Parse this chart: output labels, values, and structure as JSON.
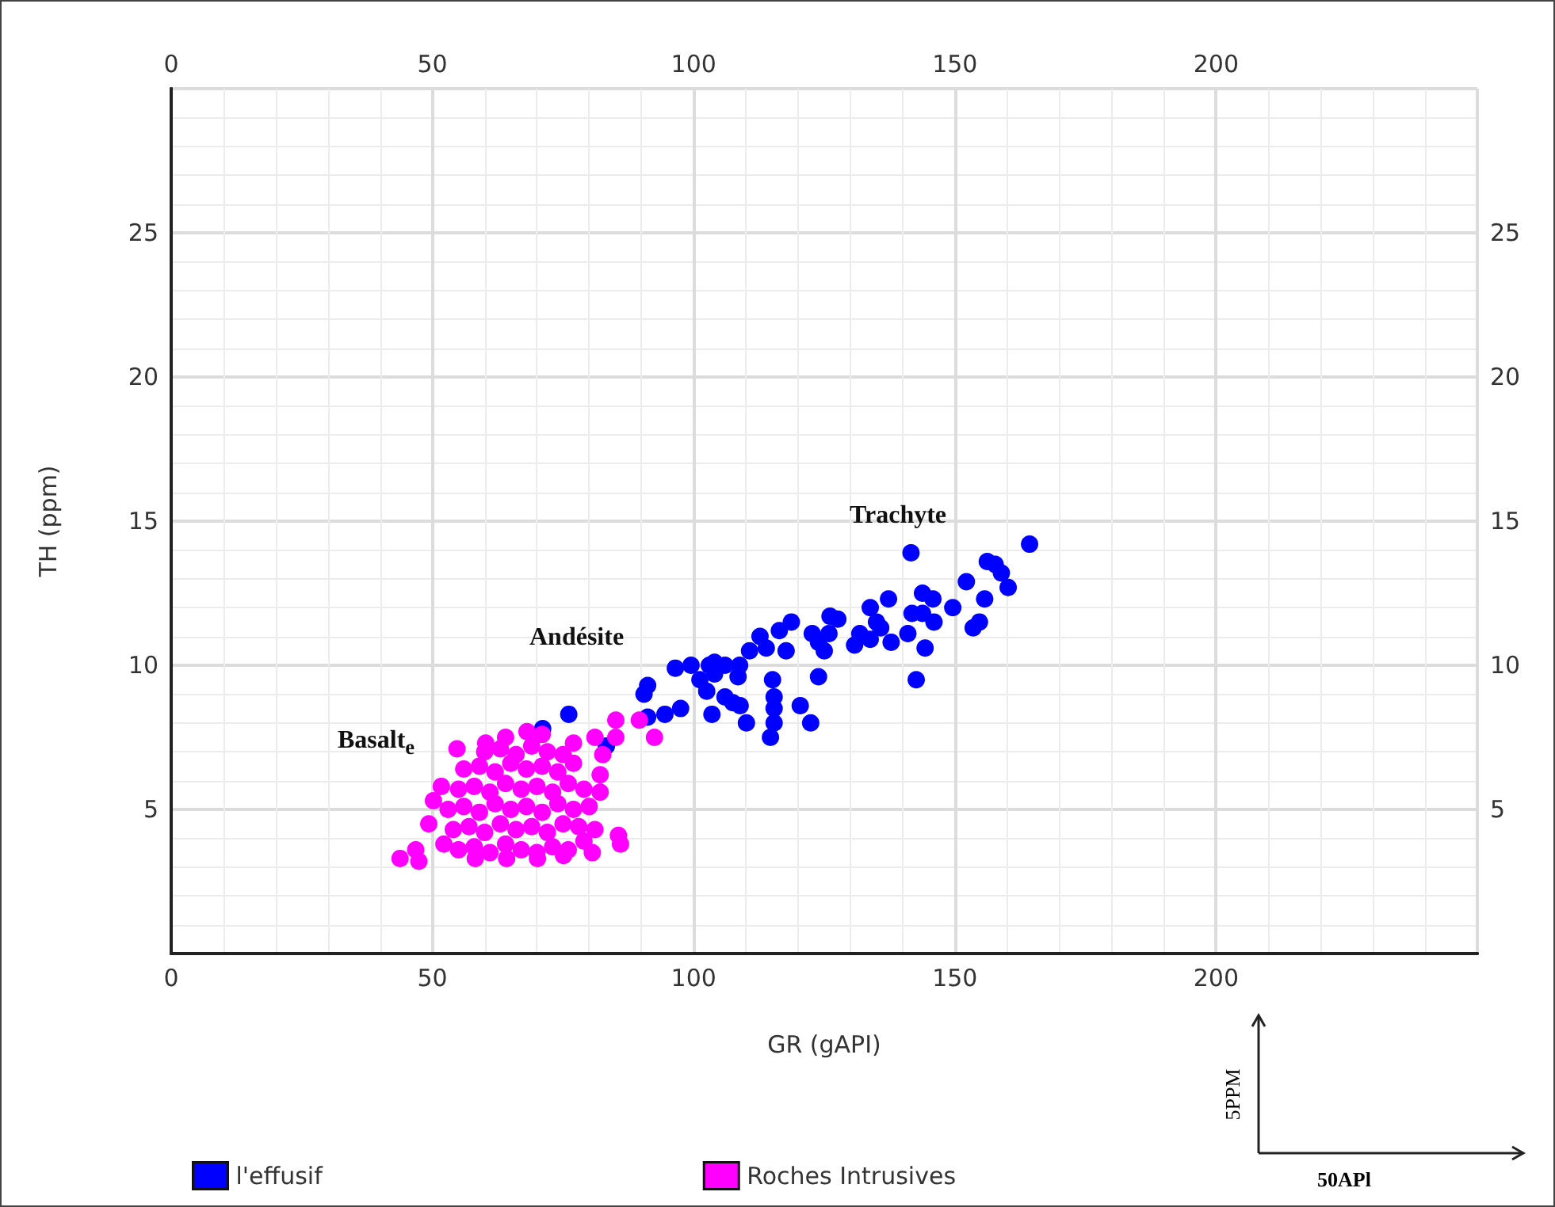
{
  "chart_data": {
    "type": "scatter",
    "xlabel": "GR (gAPI)",
    "ylabel": "TH (ppm)",
    "xlim": [
      0,
      250
    ],
    "xticks": [
      0,
      50,
      100,
      150,
      200
    ],
    "x2lim": [
      0,
      250
    ],
    "x2ticks": [
      0,
      50,
      100,
      150,
      200
    ],
    "ylim": [
      0,
      30
    ],
    "yticks": [
      5,
      10,
      15,
      20,
      25
    ],
    "y2lim": [
      0,
      30
    ],
    "y2ticks": [
      5,
      10,
      15,
      20,
      25
    ],
    "grid": true,
    "legend": "bottom left",
    "marker": "circle",
    "annotations": [
      "Trachyte",
      "Andésite",
      "Basalt$_{e}$",
      "5PPM",
      "50APl"
    ],
    "series": [
      {
        "name": "l'effusif",
        "color": "#0000ff",
        "x": [
          164.3,
          141.6,
          156.2,
          157.7,
          158.9,
          160.2,
          152.2,
          155.7,
          137.3,
          143.8,
          145.8,
          149.6,
          133.8,
          141.8,
          143.8,
          126.1,
          127.6,
          135.0,
          135.8,
          146.0,
          154.7,
          153.5,
          118.7,
          116.4,
          122.7,
          123.9,
          125.0,
          125.9,
          131.8,
          130.8,
          133.8,
          137.8,
          141.0,
          144.3,
          112.7,
          110.7,
          113.9,
          117.7,
          142.6,
          123.9,
          96.5,
          99.5,
          103.0,
          104.0,
          106.0,
          108.8,
          104.0,
          108.5,
          115.1,
          91.2,
          90.5,
          101.2,
          102.5,
          106.0,
          107.5,
          108.9,
          115.4,
          115.4,
          120.4,
          103.5,
          97.5,
          94.5,
          91.2,
          110.1,
          115.4,
          114.7,
          122.4,
          76.1,
          71.1,
          83.3
        ],
        "values": [
          14.2,
          13.9,
          13.6,
          13.5,
          13.2,
          12.7,
          12.9,
          12.3,
          12.3,
          12.5,
          12.3,
          12.0,
          12.0,
          11.8,
          11.8,
          11.7,
          11.6,
          11.5,
          11.3,
          11.5,
          11.5,
          11.3,
          11.5,
          11.2,
          11.1,
          10.8,
          10.5,
          11.1,
          11.1,
          10.7,
          10.9,
          10.8,
          11.1,
          10.6,
          11.0,
          10.5,
          10.6,
          10.5,
          9.5,
          9.6,
          9.9,
          10.0,
          10.0,
          10.1,
          10.0,
          10.0,
          9.7,
          9.6,
          9.5,
          9.3,
          9.0,
          9.5,
          9.1,
          8.9,
          8.7,
          8.6,
          8.9,
          8.5,
          8.6,
          8.3,
          8.5,
          8.3,
          8.2,
          8.0,
          8.0,
          7.5,
          8.0,
          8.3,
          7.8,
          7.2
        ]
      },
      {
        "name": "Roches Intrusives",
        "color": "#ff00ff",
        "x": [
          43.8,
          46.8,
          47.4,
          54.7,
          60.2,
          68.1,
          85.1,
          89.6,
          85.1,
          92.5,
          81.1,
          82.6,
          82.1,
          82.1,
          85.6,
          86.0,
          81.1,
          80.6,
          75.1,
          50.2,
          49.3,
          51.7,
          52.2,
          58.2,
          64.2,
          70.1,
          55,
          58,
          61,
          64,
          67,
          70,
          73,
          76,
          79,
          54,
          57,
          60,
          63,
          66,
          69,
          72,
          75,
          78,
          53,
          56,
          59,
          62,
          65,
          68,
          71,
          74,
          77,
          80,
          55,
          58,
          61,
          64,
          67,
          70,
          73,
          76,
          79,
          56,
          59,
          62,
          65,
          68,
          71,
          74,
          77,
          60,
          63,
          66,
          69,
          72,
          75,
          64,
          71,
          77
        ],
        "values": [
          3.3,
          3.6,
          3.2,
          7.1,
          7.3,
          7.7,
          8.1,
          8.1,
          7.5,
          7.5,
          7.5,
          6.9,
          6.2,
          5.6,
          4.1,
          3.8,
          4.3,
          3.5,
          3.4,
          5.3,
          4.5,
          5.8,
          3.8,
          3.3,
          3.3,
          3.3,
          3.6,
          3.7,
          3.5,
          3.8,
          3.6,
          3.5,
          3.7,
          3.6,
          3.9,
          4.3,
          4.4,
          4.2,
          4.5,
          4.3,
          4.4,
          4.2,
          4.5,
          4.4,
          5.0,
          5.1,
          4.9,
          5.2,
          5.0,
          5.1,
          4.9,
          5.2,
          5.0,
          5.1,
          5.7,
          5.8,
          5.6,
          5.9,
          5.7,
          5.8,
          5.6,
          5.9,
          5.7,
          6.4,
          6.5,
          6.3,
          6.6,
          6.4,
          6.5,
          6.3,
          6.6,
          7.0,
          7.1,
          6.9,
          7.2,
          7.0,
          6.9,
          7.5,
          7.6,
          7.3
        ]
      }
    ]
  }
}
